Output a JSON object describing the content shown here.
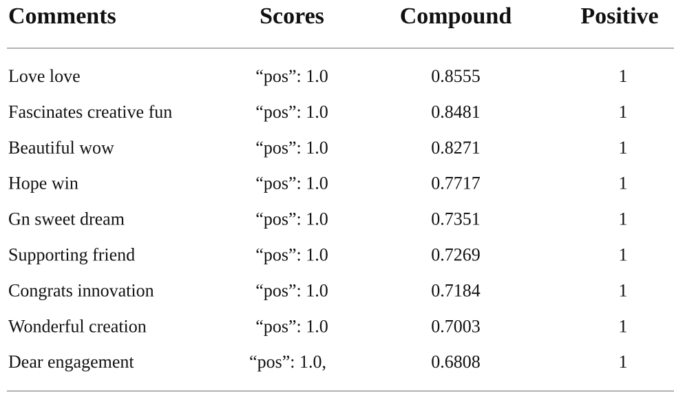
{
  "table": {
    "header": [
      "Comments",
      "Scores",
      "Compound",
      "Positive"
    ],
    "rows": [
      [
        "Love love",
        "“pos”: 1.0",
        0.8555,
        1
      ],
      [
        "Fascinates creative fun",
        "“pos”: 1.0",
        0.8481,
        1
      ],
      [
        "Beautiful wow",
        "“pos”: 1.0",
        0.8271,
        1
      ],
      [
        "Hope win",
        "“pos”: 1.0",
        0.7717,
        1
      ],
      [
        "Gn sweet dream",
        "“pos”: 1.0",
        0.7351,
        1
      ],
      [
        "Supporting friend",
        "“pos”: 1.0",
        0.7269,
        1
      ],
      [
        "Congrats innovation",
        "“pos”: 1.0",
        0.7184,
        1
      ],
      [
        "Wonderful creation",
        "“pos”: 1.0",
        0.7003,
        1
      ],
      [
        "Dear engagement",
        "“pos”: 1.0,",
        0.6808,
        1
      ]
    ]
  }
}
